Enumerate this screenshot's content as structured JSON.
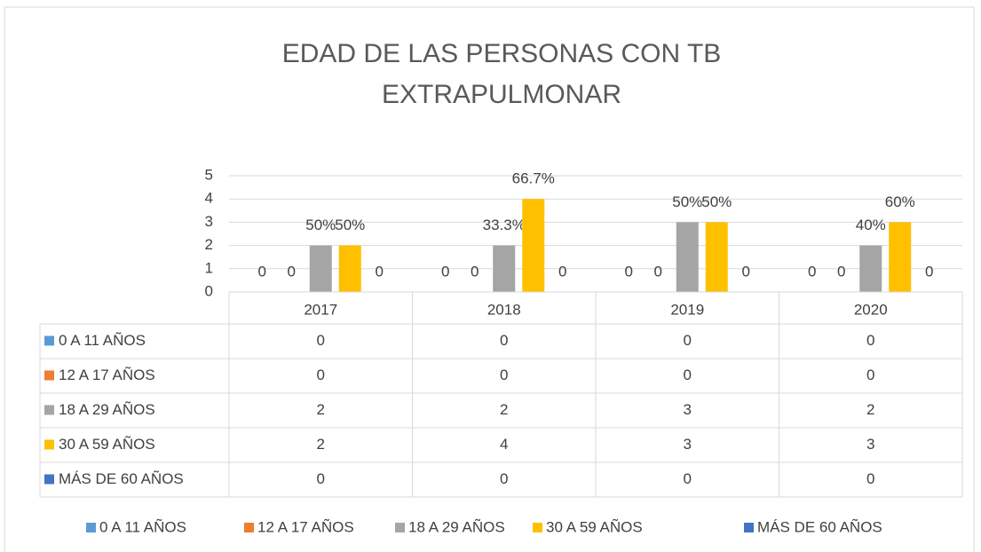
{
  "chart_data": {
    "type": "bar",
    "title": "EDAD DE LAS PERSONAS CON TB EXTRAPULMONAR",
    "categories": [
      "2017",
      "2018",
      "2019",
      "2020"
    ],
    "series": [
      {
        "name": "0 A 11 AÑOS",
        "color": "#5b9bd5",
        "values": [
          0,
          0,
          0,
          0
        ]
      },
      {
        "name": "12 A 17 AÑOS",
        "color": "#ed7d31",
        "values": [
          0,
          0,
          0,
          0
        ]
      },
      {
        "name": "18 A 29 AÑOS",
        "color": "#a5a5a5",
        "values": [
          2,
          2,
          3,
          2
        ],
        "share_labels": [
          "50%",
          "33.3%",
          "50%",
          "40%"
        ]
      },
      {
        "name": "30 A 59 AÑOS",
        "color": "#ffc000",
        "values": [
          2,
          4,
          3,
          3
        ],
        "share_labels": [
          "50%",
          "66.7%",
          "50%",
          "60%"
        ]
      },
      {
        "name": "MÁS DE 60 AÑOS",
        "color": "#4472c4",
        "values": [
          0,
          0,
          0,
          0
        ]
      }
    ],
    "ylim": [
      0,
      5
    ],
    "yticks": [
      0,
      1,
      2,
      3,
      4,
      5
    ],
    "grid": true,
    "legend": "bottom",
    "data_table": true
  }
}
